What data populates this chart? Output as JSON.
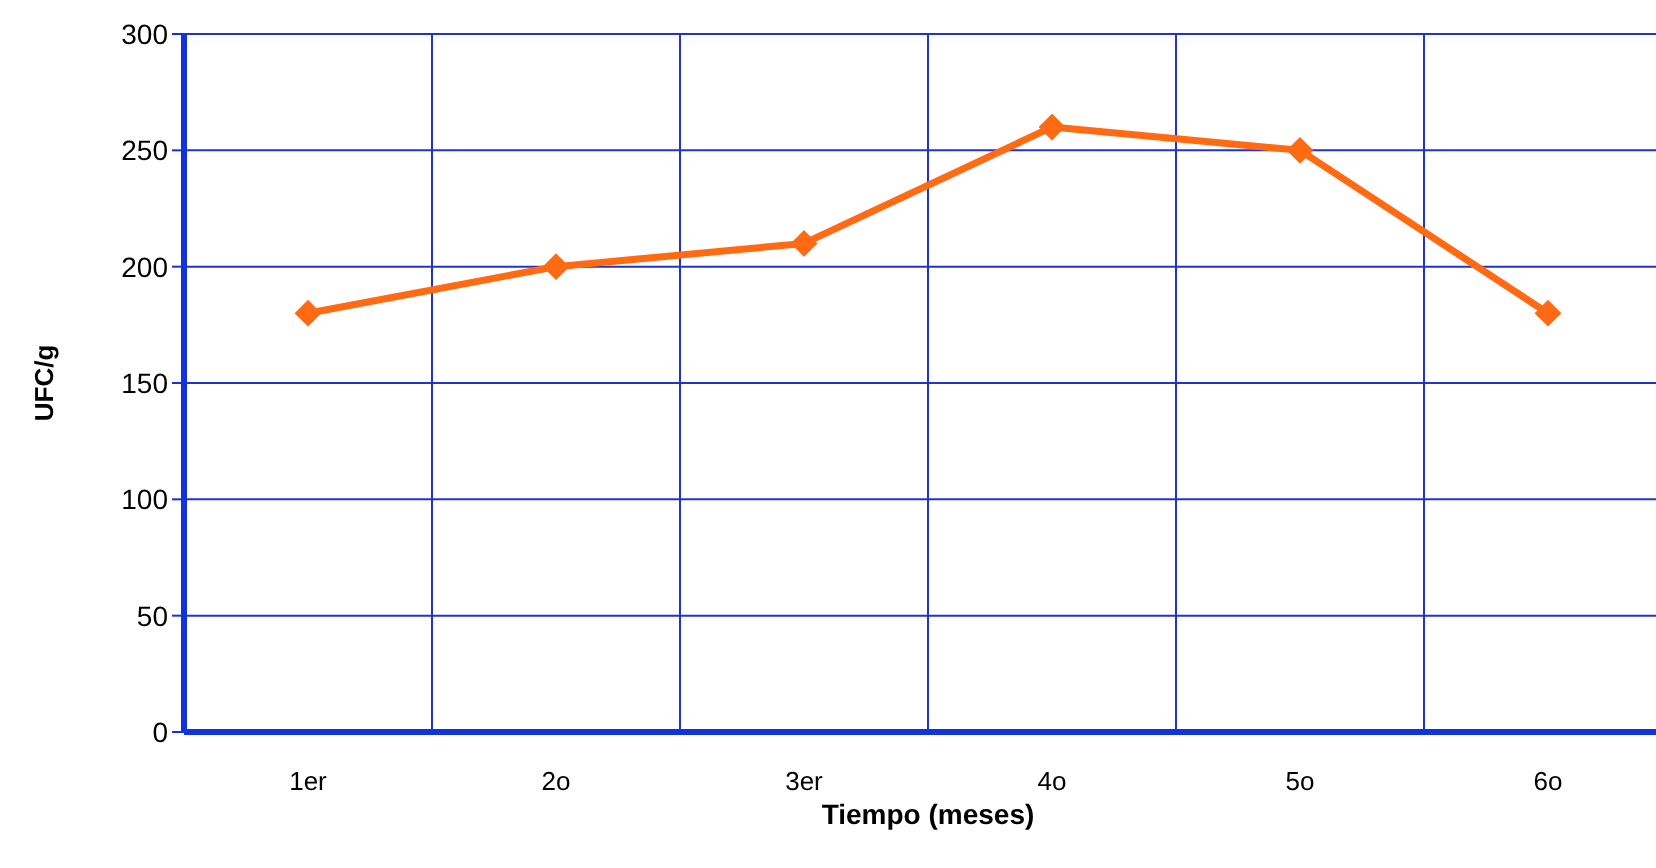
{
  "chart_data": {
    "type": "line",
    "xlabel": "Tiempo (meses)",
    "ylabel": "UFC/g",
    "categories": [
      "1er",
      "2o",
      "3er",
      "4o",
      "5o",
      "6o"
    ],
    "series": [
      {
        "color": "#ff6a13",
        "values": [
          180,
          200,
          210,
          260,
          250,
          180
        ]
      }
    ],
    "ylim": [
      0,
      300
    ],
    "yticks": [
      0,
      50,
      100,
      150,
      200,
      250,
      300
    ],
    "grid": true,
    "marker": "diamond",
    "line_style": "solid",
    "legend": false
  }
}
